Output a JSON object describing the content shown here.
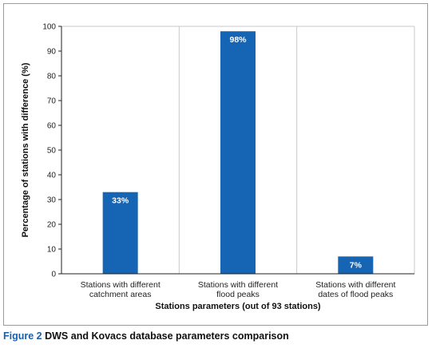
{
  "chart_data": {
    "type": "bar",
    "categories": [
      [
        "Stations with different",
        "catchment areas"
      ],
      [
        "Stations with different",
        "flood peaks"
      ],
      [
        "Stations with different",
        "dates of flood peaks"
      ]
    ],
    "values": [
      33,
      98,
      7
    ],
    "data_labels": [
      "33%",
      "98%",
      "7%"
    ],
    "xlabel": "Stations parameters (out of 93 stations)",
    "ylabel": "Percentage of stations with difference (%)",
    "ylim": [
      0,
      100
    ],
    "yticks": [
      0,
      10,
      20,
      30,
      40,
      50,
      60,
      70,
      80,
      90,
      100
    ],
    "grid": "vertical-category-dividers",
    "bar_color": "#1565b4"
  },
  "caption": {
    "label": "Figure 2",
    "text": "DWS and Kovacs database parameters comparison",
    "label_color": "#1a5fa8"
  }
}
